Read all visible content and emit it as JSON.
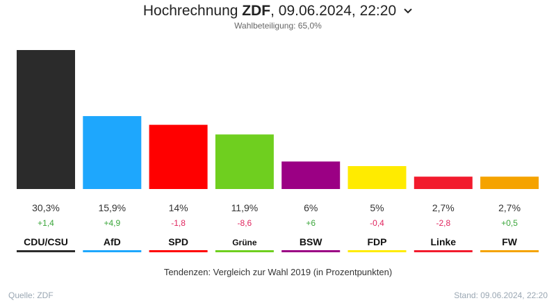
{
  "header": {
    "title_prefix": "Hochrechnung",
    "title_brand": "ZDF",
    "title_suffix": ", 09.06.2024, 22:20",
    "subtitle": "Wahlbeteiligung: 65,0%"
  },
  "footer": {
    "note": "Tendenzen: Vergleich zur Wahl 2019 (in Prozentpunkten)",
    "source": "Quelle: ZDF",
    "stand": "Stand: 09.06.2024, 22:20"
  },
  "colors": {
    "positive": "#3aa63a",
    "negative": "#e0245e"
  },
  "chart_data": {
    "type": "bar",
    "categories": [
      "CDU/CSU",
      "AfD",
      "SPD",
      "Grüne",
      "BSW",
      "FDP",
      "Linke",
      "FW"
    ],
    "values": [
      30.3,
      15.9,
      14,
      11.9,
      6,
      5,
      2.7,
      2.7
    ],
    "value_labels": [
      "30,3%",
      "15,9%",
      "14%",
      "11,9%",
      "6%",
      "5%",
      "2,7%",
      "2,7%"
    ],
    "changes": [
      "+1,4",
      "+4,9",
      "-1,8",
      "-8,6",
      "+6",
      "-0,4",
      "-2,8",
      "+0,5"
    ],
    "colors": [
      "#2b2b2b",
      "#1ea7fd",
      "#ff0000",
      "#6fcf1f",
      "#9b0084",
      "#ffeb00",
      "#f21b2d",
      "#f5a300"
    ],
    "ylim": [
      0,
      30.3
    ],
    "grid": false
  }
}
